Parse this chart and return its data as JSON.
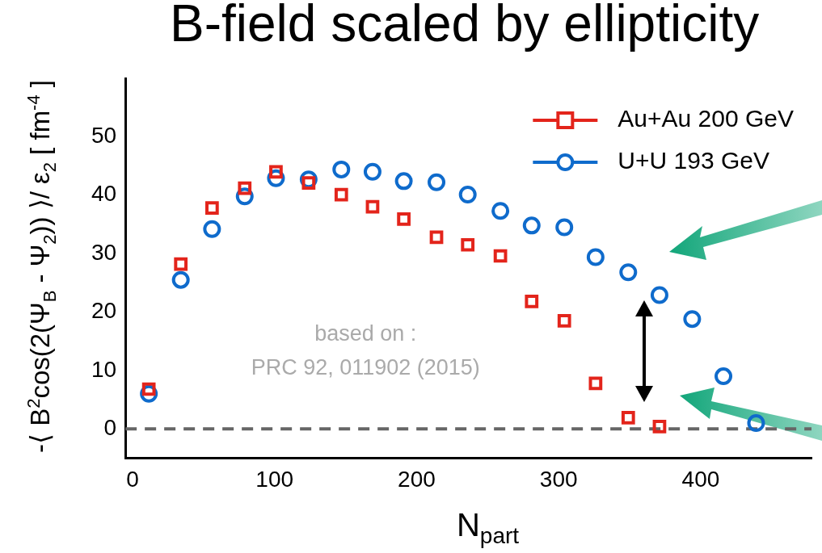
{
  "chart_data": {
    "type": "scatter",
    "title": "B-field scaled by ellipticity",
    "xlabel": "N$_{part}$",
    "ylabel": "-⟨ B$^{2}$cos(2(Ψ$_{B}$ - Ψ$_{2}$)) ⟩/ ε$_{2}$ [ fm$^{-4}$ ]",
    "annotations": [
      "based on :",
      "PRC 92, 011902 (2015)"
    ],
    "series": [
      {
        "name": "Au+Au 200 GeV",
        "color": "#e3241b",
        "marker": "square",
        "x": [
          11.5,
          34,
          56,
          79,
          101,
          124,
          147,
          169,
          191,
          214,
          236,
          259,
          281,
          304,
          326,
          349,
          371
        ],
        "values": [
          6.8,
          28.2,
          37.8,
          41.2,
          44.0,
          42.1,
          40.1,
          38.0,
          35.9,
          32.8,
          31.5,
          29.6,
          21.8,
          18.5,
          7.8,
          1.9,
          0.4
        ]
      },
      {
        "name": "U+U 193 GeV",
        "color": "#0f6bcc",
        "marker": "circle",
        "x": [
          11.5,
          34,
          56,
          79,
          101,
          124,
          147,
          169,
          191,
          214,
          236,
          259,
          281,
          304,
          326,
          349,
          371,
          394,
          416,
          439
        ],
        "values": [
          6.0,
          25.5,
          34.2,
          39.8,
          42.9,
          42.7,
          44.4,
          44.0,
          42.4,
          42.2,
          40.1,
          37.3,
          34.8,
          34.5,
          29.4,
          26.8,
          22.9,
          18.8,
          9.0,
          1.0
        ]
      }
    ],
    "xlim": [
      -5,
      478
    ],
    "xticks": [
      0,
      100,
      200,
      300,
      400
    ],
    "ylim": [
      -5,
      60
    ],
    "yticks": [
      0,
      10,
      20,
      30,
      40,
      50
    ],
    "ref_lines": [
      {
        "axis": "y",
        "value": 0,
        "color": "#666666",
        "line_style": "dashed"
      }
    ],
    "legend": "top right",
    "grid": false
  }
}
